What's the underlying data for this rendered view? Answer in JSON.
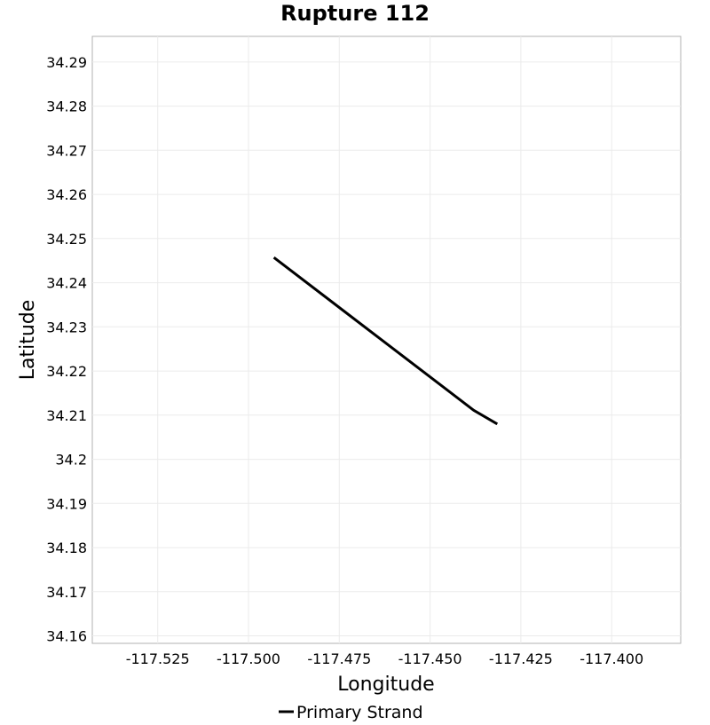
{
  "chart_data": {
    "type": "line",
    "title": "Rupture 112",
    "xlabel": "Longitude",
    "ylabel": "Latitude",
    "xlim": [
      -117.543,
      -117.381
    ],
    "ylim": [
      34.1583,
      34.2958
    ],
    "x_ticks": [
      -117.525,
      -117.5,
      -117.475,
      -117.45,
      -117.425,
      -117.4
    ],
    "x_tick_labels": [
      "-117.525",
      "-117.500",
      "-117.475",
      "-117.450",
      "-117.425",
      "-117.400"
    ],
    "y_ticks": [
      34.29,
      34.28,
      34.27,
      34.26,
      34.25,
      34.24,
      34.23,
      34.22,
      34.21,
      34.2,
      34.19,
      34.18,
      34.17,
      34.16
    ],
    "y_tick_labels": [
      "34.29",
      "34.28",
      "34.27",
      "34.26",
      "34.25",
      "34.24",
      "34.23",
      "34.22",
      "34.21",
      "34.2",
      "34.19",
      "34.18",
      "34.17",
      "34.16"
    ],
    "grid": true,
    "legend_position": "bottom",
    "series": [
      {
        "name": "Primary Strand",
        "color": "#000000",
        "x": [
          -117.493,
          -117.438,
          -117.4315
        ],
        "y": [
          34.2457,
          34.2111,
          34.208
        ]
      }
    ]
  }
}
